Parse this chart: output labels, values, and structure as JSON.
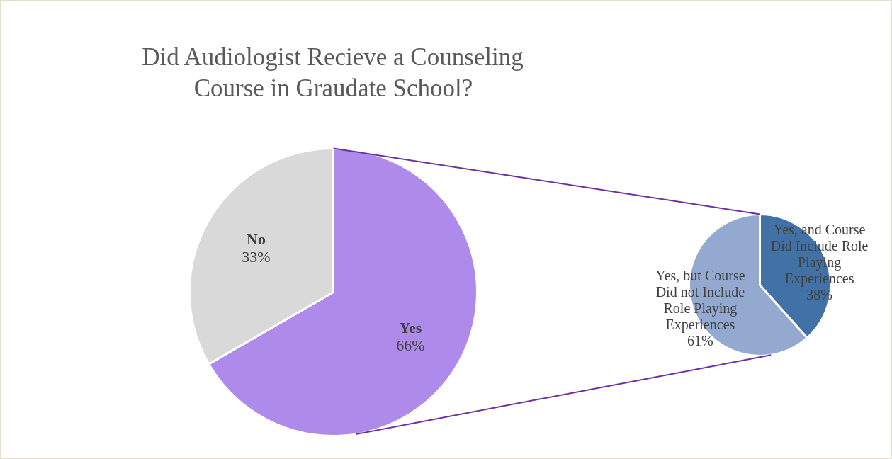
{
  "chart_data": [
    {
      "type": "pie",
      "title": "Did Audiologist Recieve a Counseling Course in Graudate School?",
      "categories": [
        "Yes",
        "No"
      ],
      "values": [
        66,
        33
      ],
      "value_labels": [
        "66%",
        "33%"
      ],
      "colors": [
        "#ae8aeb",
        "#d9d9d9"
      ]
    },
    {
      "type": "pie",
      "categories": [
        "Yes, and Course Did Include Role Playing Experiences",
        "Yes, but Course Did not Include Role Playing Experiences"
      ],
      "values": [
        38,
        61
      ],
      "value_labels": [
        "38%",
        "61%"
      ],
      "colors": [
        "#4271a6",
        "#94a9cf"
      ]
    }
  ]
}
